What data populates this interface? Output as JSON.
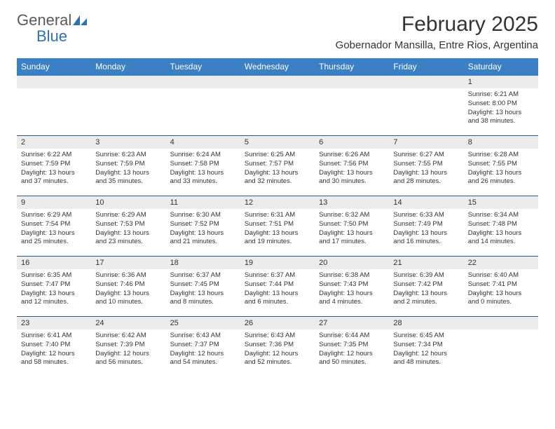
{
  "logo": {
    "text1": "General",
    "text2": "Blue"
  },
  "title": "February 2025",
  "subtitle": "Gobernador Mansilla, Entre Rios, Argentina",
  "colors": {
    "header_bg": "#3b7fc4",
    "header_text": "#ffffff",
    "daynum_bg": "#ececec",
    "border": "#2b5a8a",
    "logo_gray": "#5a5a5a",
    "logo_blue": "#2f6fb3",
    "body_text": "#333333",
    "background": "#ffffff"
  },
  "weekdays": [
    "Sunday",
    "Monday",
    "Tuesday",
    "Wednesday",
    "Thursday",
    "Friday",
    "Saturday"
  ],
  "weeks": [
    [
      null,
      null,
      null,
      null,
      null,
      null,
      {
        "n": "1",
        "sr": "Sunrise: 6:21 AM",
        "ss": "Sunset: 8:00 PM",
        "dl1": "Daylight: 13 hours",
        "dl2": "and 38 minutes."
      }
    ],
    [
      {
        "n": "2",
        "sr": "Sunrise: 6:22 AM",
        "ss": "Sunset: 7:59 PM",
        "dl1": "Daylight: 13 hours",
        "dl2": "and 37 minutes."
      },
      {
        "n": "3",
        "sr": "Sunrise: 6:23 AM",
        "ss": "Sunset: 7:59 PM",
        "dl1": "Daylight: 13 hours",
        "dl2": "and 35 minutes."
      },
      {
        "n": "4",
        "sr": "Sunrise: 6:24 AM",
        "ss": "Sunset: 7:58 PM",
        "dl1": "Daylight: 13 hours",
        "dl2": "and 33 minutes."
      },
      {
        "n": "5",
        "sr": "Sunrise: 6:25 AM",
        "ss": "Sunset: 7:57 PM",
        "dl1": "Daylight: 13 hours",
        "dl2": "and 32 minutes."
      },
      {
        "n": "6",
        "sr": "Sunrise: 6:26 AM",
        "ss": "Sunset: 7:56 PM",
        "dl1": "Daylight: 13 hours",
        "dl2": "and 30 minutes."
      },
      {
        "n": "7",
        "sr": "Sunrise: 6:27 AM",
        "ss": "Sunset: 7:55 PM",
        "dl1": "Daylight: 13 hours",
        "dl2": "and 28 minutes."
      },
      {
        "n": "8",
        "sr": "Sunrise: 6:28 AM",
        "ss": "Sunset: 7:55 PM",
        "dl1": "Daylight: 13 hours",
        "dl2": "and 26 minutes."
      }
    ],
    [
      {
        "n": "9",
        "sr": "Sunrise: 6:29 AM",
        "ss": "Sunset: 7:54 PM",
        "dl1": "Daylight: 13 hours",
        "dl2": "and 25 minutes."
      },
      {
        "n": "10",
        "sr": "Sunrise: 6:29 AM",
        "ss": "Sunset: 7:53 PM",
        "dl1": "Daylight: 13 hours",
        "dl2": "and 23 minutes."
      },
      {
        "n": "11",
        "sr": "Sunrise: 6:30 AM",
        "ss": "Sunset: 7:52 PM",
        "dl1": "Daylight: 13 hours",
        "dl2": "and 21 minutes."
      },
      {
        "n": "12",
        "sr": "Sunrise: 6:31 AM",
        "ss": "Sunset: 7:51 PM",
        "dl1": "Daylight: 13 hours",
        "dl2": "and 19 minutes."
      },
      {
        "n": "13",
        "sr": "Sunrise: 6:32 AM",
        "ss": "Sunset: 7:50 PM",
        "dl1": "Daylight: 13 hours",
        "dl2": "and 17 minutes."
      },
      {
        "n": "14",
        "sr": "Sunrise: 6:33 AM",
        "ss": "Sunset: 7:49 PM",
        "dl1": "Daylight: 13 hours",
        "dl2": "and 16 minutes."
      },
      {
        "n": "15",
        "sr": "Sunrise: 6:34 AM",
        "ss": "Sunset: 7:48 PM",
        "dl1": "Daylight: 13 hours",
        "dl2": "and 14 minutes."
      }
    ],
    [
      {
        "n": "16",
        "sr": "Sunrise: 6:35 AM",
        "ss": "Sunset: 7:47 PM",
        "dl1": "Daylight: 13 hours",
        "dl2": "and 12 minutes."
      },
      {
        "n": "17",
        "sr": "Sunrise: 6:36 AM",
        "ss": "Sunset: 7:46 PM",
        "dl1": "Daylight: 13 hours",
        "dl2": "and 10 minutes."
      },
      {
        "n": "18",
        "sr": "Sunrise: 6:37 AM",
        "ss": "Sunset: 7:45 PM",
        "dl1": "Daylight: 13 hours",
        "dl2": "and 8 minutes."
      },
      {
        "n": "19",
        "sr": "Sunrise: 6:37 AM",
        "ss": "Sunset: 7:44 PM",
        "dl1": "Daylight: 13 hours",
        "dl2": "and 6 minutes."
      },
      {
        "n": "20",
        "sr": "Sunrise: 6:38 AM",
        "ss": "Sunset: 7:43 PM",
        "dl1": "Daylight: 13 hours",
        "dl2": "and 4 minutes."
      },
      {
        "n": "21",
        "sr": "Sunrise: 6:39 AM",
        "ss": "Sunset: 7:42 PM",
        "dl1": "Daylight: 13 hours",
        "dl2": "and 2 minutes."
      },
      {
        "n": "22",
        "sr": "Sunrise: 6:40 AM",
        "ss": "Sunset: 7:41 PM",
        "dl1": "Daylight: 13 hours",
        "dl2": "and 0 minutes."
      }
    ],
    [
      {
        "n": "23",
        "sr": "Sunrise: 6:41 AM",
        "ss": "Sunset: 7:40 PM",
        "dl1": "Daylight: 12 hours",
        "dl2": "and 58 minutes."
      },
      {
        "n": "24",
        "sr": "Sunrise: 6:42 AM",
        "ss": "Sunset: 7:39 PM",
        "dl1": "Daylight: 12 hours",
        "dl2": "and 56 minutes."
      },
      {
        "n": "25",
        "sr": "Sunrise: 6:43 AM",
        "ss": "Sunset: 7:37 PM",
        "dl1": "Daylight: 12 hours",
        "dl2": "and 54 minutes."
      },
      {
        "n": "26",
        "sr": "Sunrise: 6:43 AM",
        "ss": "Sunset: 7:36 PM",
        "dl1": "Daylight: 12 hours",
        "dl2": "and 52 minutes."
      },
      {
        "n": "27",
        "sr": "Sunrise: 6:44 AM",
        "ss": "Sunset: 7:35 PM",
        "dl1": "Daylight: 12 hours",
        "dl2": "and 50 minutes."
      },
      {
        "n": "28",
        "sr": "Sunrise: 6:45 AM",
        "ss": "Sunset: 7:34 PM",
        "dl1": "Daylight: 12 hours",
        "dl2": "and 48 minutes."
      },
      null
    ]
  ]
}
